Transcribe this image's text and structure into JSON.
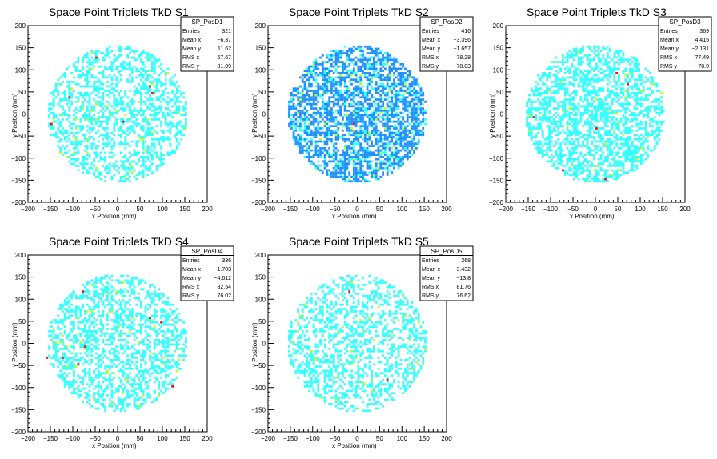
{
  "colors": {
    "low": "#33ffff",
    "mid": "#1e90ff",
    "high": "#b0ff33",
    "max": "#e8141a",
    "frame": "#000000"
  },
  "chart_data": [
    {
      "type": "heatmap",
      "title": "Space Point Triplets TkD S1",
      "xlabel": "x Position (mm)",
      "ylabel": "y Position (mm)",
      "xlim": [
        -200,
        200
      ],
      "ylim": [
        -200,
        200
      ],
      "xticks": [
        "−200",
        "−150",
        "−100",
        "−50",
        "0",
        "50",
        "100",
        "150",
        "200"
      ],
      "yticks": [
        "−200",
        "−150",
        "−100",
        "−50",
        "0",
        "50",
        "100",
        "150",
        "200"
      ],
      "stats": {
        "name": "SP_PosD1",
        "rows": [
          {
            "label": "Entries",
            "value": "321"
          },
          {
            "label": "Mean x",
            "value": "−6.37"
          },
          {
            "label": "Mean y",
            "value": "11.62"
          },
          {
            "label": "RMS x",
            "value": "67.67"
          },
          {
            "label": "RMS y",
            "value": "81.09"
          }
        ]
      },
      "base_level": "low",
      "density": 0.44,
      "seed": 11,
      "highlights": [
        {
          "x": -50,
          "y": 125,
          "level": "max"
        },
        {
          "x": -110,
          "y": 35,
          "level": "max"
        },
        {
          "x": -150,
          "y": -25,
          "level": "max"
        },
        {
          "x": 10,
          "y": -20,
          "level": "max"
        },
        {
          "x": 70,
          "y": 60,
          "level": "max"
        },
        {
          "x": 75,
          "y": 45,
          "level": "max"
        },
        {
          "x": 70,
          "y": 95,
          "level": "high"
        },
        {
          "x": -95,
          "y": -60,
          "level": "high"
        },
        {
          "x": 150,
          "y": -35,
          "level": "high"
        },
        {
          "x": 30,
          "y": -135,
          "level": "high"
        }
      ]
    },
    {
      "type": "heatmap",
      "title": "Space Point Triplets TkD S2",
      "xlabel": "x Position (mm)",
      "ylabel": "y Position (mm)",
      "xlim": [
        -200,
        200
      ],
      "ylim": [
        -200,
        200
      ],
      "xticks": [
        "−200",
        "−150",
        "−100",
        "−50",
        "0",
        "50",
        "100",
        "150",
        "200"
      ],
      "yticks": [
        "−200",
        "−150",
        "−100",
        "−50",
        "0",
        "50",
        "100",
        "150",
        "200"
      ],
      "stats": {
        "name": "SP_PosD2",
        "rows": [
          {
            "label": "Entries",
            "value": "416"
          },
          {
            "label": "Mean x",
            "value": "−3.396"
          },
          {
            "label": "Mean y",
            "value": "−1.657"
          },
          {
            "label": "RMS x",
            "value": "78.28"
          },
          {
            "label": "RMS y",
            "value": "78.03"
          }
        ]
      },
      "base_level": "mid",
      "density": 0.62,
      "seed": 23,
      "highlights": [
        {
          "x": -10,
          "y": -25,
          "level": "max"
        },
        {
          "x": 70,
          "y": 50,
          "level": "high"
        },
        {
          "x": -40,
          "y": 85,
          "level": "high"
        },
        {
          "x": 20,
          "y": -50,
          "level": "high"
        },
        {
          "x": -70,
          "y": -95,
          "level": "high"
        },
        {
          "x": 80,
          "y": -100,
          "level": "high"
        },
        {
          "x": -150,
          "y": 30,
          "level": "low"
        },
        {
          "x": -100,
          "y": 100,
          "level": "low"
        },
        {
          "x": 110,
          "y": 20,
          "level": "low"
        }
      ]
    },
    {
      "type": "heatmap",
      "title": "Space Point Triplets TkD S3",
      "xlabel": "x Position (mm)",
      "ylabel": "y Position (mm)",
      "xlim": [
        -200,
        200
      ],
      "ylim": [
        -200,
        200
      ],
      "xticks": [
        "−200",
        "−150",
        "−100",
        "−50",
        "0",
        "50",
        "100",
        "150",
        "200"
      ],
      "yticks": [
        "−200",
        "−150",
        "−100",
        "−50",
        "0",
        "50",
        "100",
        "150",
        "200"
      ],
      "stats": {
        "name": "SP_PosD3",
        "rows": [
          {
            "label": "Entries",
            "value": "369"
          },
          {
            "label": "Mean x",
            "value": "4.415"
          },
          {
            "label": "Mean y",
            "value": "−2.131"
          },
          {
            "label": "RMS x",
            "value": "77.49"
          },
          {
            "label": "RMS y",
            "value": "78.9"
          }
        ]
      },
      "base_level": "low",
      "density": 0.52,
      "seed": 37,
      "highlights": [
        {
          "x": 45,
          "y": 90,
          "level": "max"
        },
        {
          "x": 70,
          "y": 65,
          "level": "max"
        },
        {
          "x": -140,
          "y": -10,
          "level": "max"
        },
        {
          "x": 0,
          "y": -35,
          "level": "max"
        },
        {
          "x": -75,
          "y": -130,
          "level": "max"
        },
        {
          "x": 20,
          "y": -150,
          "level": "max"
        },
        {
          "x": -5,
          "y": -75,
          "level": "high"
        },
        {
          "x": 100,
          "y": 50,
          "level": "high"
        },
        {
          "x": 50,
          "y": -130,
          "level": "high"
        }
      ]
    },
    {
      "type": "heatmap",
      "title": "Space Point Triplets TkD S4",
      "xlabel": "x Position (mm)",
      "ylabel": "y Position (mm)",
      "xlim": [
        -200,
        200
      ],
      "ylim": [
        -200,
        200
      ],
      "xticks": [
        "−200",
        "−150",
        "−100",
        "−50",
        "0",
        "50",
        "100",
        "150",
        "200"
      ],
      "yticks": [
        "−200",
        "−150",
        "−100",
        "−50",
        "0",
        "50",
        "100",
        "150",
        "200"
      ],
      "stats": {
        "name": "SP_PosD4",
        "rows": [
          {
            "label": "Entries",
            "value": "336"
          },
          {
            "label": "Mean x",
            "value": "−1.703"
          },
          {
            "label": "Mean y",
            "value": "−4.612"
          },
          {
            "label": "RMS x",
            "value": "82.54"
          },
          {
            "label": "RMS y",
            "value": "76.02"
          }
        ]
      },
      "base_level": "low",
      "density": 0.45,
      "seed": 51,
      "highlights": [
        {
          "x": -80,
          "y": 115,
          "level": "max"
        },
        {
          "x": 70,
          "y": 55,
          "level": "max"
        },
        {
          "x": 95,
          "y": 45,
          "level": "max"
        },
        {
          "x": -75,
          "y": -10,
          "level": "max"
        },
        {
          "x": -160,
          "y": -35,
          "level": "max"
        },
        {
          "x": -125,
          "y": -35,
          "level": "max"
        },
        {
          "x": -90,
          "y": -50,
          "level": "max"
        },
        {
          "x": 120,
          "y": -100,
          "level": "max"
        },
        {
          "x": -60,
          "y": 70,
          "level": "high"
        },
        {
          "x": 25,
          "y": 25,
          "level": "high"
        },
        {
          "x": -55,
          "y": -130,
          "level": "high"
        }
      ]
    },
    {
      "type": "heatmap",
      "title": "Space Point Triplets TkD S5",
      "xlabel": "x Position (mm)",
      "ylabel": "y Position (mm)",
      "xlim": [
        -200,
        200
      ],
      "ylim": [
        -200,
        200
      ],
      "xticks": [
        "−200",
        "−150",
        "−100",
        "−50",
        "0",
        "50",
        "100",
        "150",
        "200"
      ],
      "yticks": [
        "−200",
        "−150",
        "−100",
        "−50",
        "0",
        "50",
        "100",
        "150",
        "200"
      ],
      "stats": {
        "name": "SP_PosD5",
        "rows": [
          {
            "label": "Entries",
            "value": "268"
          },
          {
            "label": "Mean x",
            "value": "−3.432"
          },
          {
            "label": "Mean y",
            "value": "−13.8"
          },
          {
            "label": "RMS x",
            "value": "81.76"
          },
          {
            "label": "RMS y",
            "value": "76.62"
          }
        ]
      },
      "base_level": "low",
      "density": 0.38,
      "seed": 67,
      "highlights": [
        {
          "x": -20,
          "y": 115,
          "level": "max"
        },
        {
          "x": 65,
          "y": -85,
          "level": "max"
        },
        {
          "x": -130,
          "y": 60,
          "level": "high"
        },
        {
          "x": 120,
          "y": -60,
          "level": "high"
        },
        {
          "x": 30,
          "y": -110,
          "level": "high"
        },
        {
          "x": -50,
          "y": -80,
          "level": "high"
        },
        {
          "x": 0,
          "y": -150,
          "level": "high"
        }
      ]
    }
  ]
}
